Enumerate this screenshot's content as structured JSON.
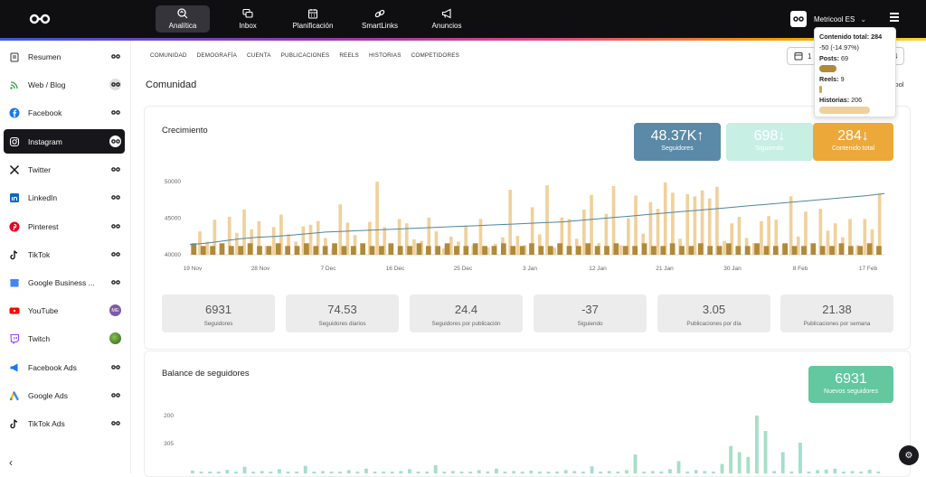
{
  "nav": {
    "items": [
      {
        "label": "Analítica",
        "icon": "analytics-icon"
      },
      {
        "label": "Inbox",
        "icon": "inbox-icon"
      },
      {
        "label": "Planificación",
        "icon": "calendar-icon"
      },
      {
        "label": "SmartLinks",
        "icon": "link-icon"
      },
      {
        "label": "Anuncios",
        "icon": "megaphone-icon"
      }
    ],
    "brand": "Metricool ES"
  },
  "sidebar": {
    "items": [
      {
        "label": "Resumen",
        "icon": "clipboard-icon"
      },
      {
        "label": "Web / Blog",
        "icon": "rss-icon"
      },
      {
        "label": "Facebook",
        "icon": "facebook-icon"
      },
      {
        "label": "Instagram",
        "icon": "instagram-icon"
      },
      {
        "label": "Twitter",
        "icon": "x-icon"
      },
      {
        "label": "LinkedIn",
        "icon": "linkedin-icon"
      },
      {
        "label": "Pinterest",
        "icon": "pinterest-icon"
      },
      {
        "label": "TikTok",
        "icon": "tiktok-icon"
      },
      {
        "label": "Google Business ...",
        "icon": "google-business-icon"
      },
      {
        "label": "YouTube",
        "icon": "youtube-icon",
        "badge": "ME"
      },
      {
        "label": "Twitch",
        "icon": "twitch-icon"
      },
      {
        "label": "Facebook Ads",
        "icon": "facebook-ads-icon"
      },
      {
        "label": "Google Ads",
        "icon": "google-ads-icon"
      },
      {
        "label": "TikTok Ads",
        "icon": "tiktok-ads-icon"
      }
    ]
  },
  "subnav": [
    "COMUNIDAD",
    "DEMOGRAFÍA",
    "CUENTA",
    "PUBLICACIONES",
    "REELS",
    "HISTORIAS",
    "COMPETIDORES"
  ],
  "date_range": {
    "start": "1",
    "end": "4"
  },
  "page_title": "Comunidad",
  "metricool_tag": "icool",
  "growth": {
    "title": "Crecimiento",
    "kpis": [
      {
        "value": "48.37K",
        "arrow": "↑",
        "label": "Seguidores",
        "color": "#5a8aa7"
      },
      {
        "value": "698",
        "arrow": "↓",
        "label": "Siguiendo",
        "color": "#c7efe3"
      },
      {
        "value": "284",
        "arrow": "↓",
        "label": "Contenido total",
        "color": "#eda83a"
      }
    ],
    "stats": [
      {
        "value": "6931",
        "label": "Seguidores"
      },
      {
        "value": "74.53",
        "label": "Seguidores diarios"
      },
      {
        "value": "24.4",
        "label": "Seguidores por publicación"
      },
      {
        "value": "-37",
        "label": "Siguiendo"
      },
      {
        "value": "3.05",
        "label": "Publicaciones por día"
      },
      {
        "value": "21.38",
        "label": "Publicaciones por semana"
      }
    ]
  },
  "balance": {
    "title": "Balance de seguidores",
    "kpi": {
      "value": "6931",
      "label": "Nuevos seguidores",
      "color": "#63c79f"
    }
  },
  "tooltip": {
    "title": "Contenido total:",
    "total": "284",
    "change": "-50 (-14.97%)",
    "posts_label": "Posts:",
    "posts": "69",
    "reels_label": "Reels:",
    "reels": "9",
    "stories_label": "Historias:",
    "stories": "206"
  },
  "chart_data": [
    {
      "type": "bar",
      "title": "Crecimiento",
      "ylim": [
        40000,
        52000
      ],
      "yticks": [
        "40000",
        "45000",
        "50000"
      ],
      "ytick_values": [
        40000,
        45000,
        50000
      ],
      "xticks": [
        "19 Nov",
        "28 Nov",
        "7 Dec",
        "16 Dec",
        "25 Dec",
        "3 Jan",
        "12 Jan",
        "21 Jan",
        "30 Jan",
        "8 Feb",
        "17 Feb"
      ],
      "series": [
        {
          "name": "Historias",
          "color": "#f0d19c",
          "values": [
            41500,
            43200,
            41800,
            44800,
            40600,
            45200,
            43000,
            46200,
            43500,
            44600,
            41200,
            43800,
            45500,
            42800,
            41800,
            43900,
            44100,
            44600,
            42300,
            40800,
            46900,
            44400,
            42700,
            41500,
            44500,
            50000,
            43800,
            41500,
            44900,
            44300,
            42100,
            41900,
            45100,
            43200,
            40900,
            42500,
            41800,
            44000,
            41300,
            44900,
            41000,
            41500,
            42400,
            48900,
            42600,
            41300,
            46500,
            42800,
            49500,
            41000,
            45100,
            44900,
            42200,
            46200,
            48200,
            41600,
            45600,
            49400,
            41300,
            45000,
            48100,
            42900,
            47200,
            46300,
            49900,
            48500,
            42200,
            48300,
            48000,
            48800,
            47700,
            49300,
            41900,
            44300,
            45200,
            42300,
            41600,
            44600,
            45300,
            44800,
            41500,
            48000,
            42500,
            45900,
            41300,
            46300,
            43300,
            44300,
            42400,
            44900,
            41300,
            44900,
            43500,
            48400
          ]
        },
        {
          "name": "Posts",
          "color": "#b08a3a",
          "values": [
            41200,
            41200,
            41200,
            41200,
            41200,
            41200,
            41200,
            41200,
            41200,
            41200,
            41200,
            41200,
            41200,
            41200,
            41200,
            41200,
            41200,
            41200,
            41200,
            41200,
            41200,
            41200,
            41200,
            41200,
            41200,
            41200,
            41200,
            41200,
            41200,
            41200,
            41200,
            41200,
            41200,
            41200,
            41200,
            41200,
            41200,
            41200,
            41200,
            41200,
            41200,
            41200,
            41200,
            41200,
            41200,
            41200,
            41200,
            41200,
            41200,
            41200,
            41200,
            41200,
            41200,
            41200,
            41200,
            41200,
            41200,
            41200,
            41200,
            41200,
            41200,
            41200,
            41200,
            41200,
            41200,
            41200,
            41200,
            41200,
            41200,
            41200,
            41200,
            41200,
            41200,
            41200
          ]
        },
        {
          "name": "Seguidores",
          "type": "line",
          "color": "#4e86a1",
          "values": [
            41400,
            41600,
            41900,
            42200,
            42400,
            42500,
            42700,
            42900,
            43100,
            43200,
            43300,
            43400,
            43500,
            43600,
            43700,
            43800,
            43900,
            44000,
            44100,
            44200,
            44300,
            44400,
            44500,
            44700,
            44900,
            45100,
            45300,
            45500,
            45700,
            45900,
            46100,
            46300,
            46500,
            46700,
            46900,
            47100,
            47300,
            47500,
            47700,
            47900,
            48100,
            48370
          ]
        }
      ]
    },
    {
      "type": "bar",
      "title": "Balance de seguidores",
      "yticks": [
        "200",
        "305"
      ],
      "ytick_values": [
        200,
        305
      ],
      "ylim": [
        60,
        305
      ],
      "series": [
        {
          "name": "Nuevos seguidores",
          "color": "#a6dfc8",
          "values": [
            72,
            60,
            68,
            60,
            75,
            62,
            88,
            64,
            70,
            62,
            78,
            66,
            60,
            92,
            64,
            70,
            60,
            66,
            74,
            60,
            80,
            62,
            68,
            64,
            70,
            78,
            62,
            60,
            95,
            64,
            70,
            66,
            60,
            74,
            68,
            80,
            62,
            70,
            66,
            72,
            64,
            60,
            68,
            74,
            70,
            66,
            90,
            62,
            70,
            66,
            74,
            140,
            62,
            70,
            68,
            78,
            112,
            66,
            74,
            70,
            62,
            100,
            176,
            150,
            130,
            305,
            240,
            70,
            150,
            68,
            190,
            62,
            74,
            76,
            80,
            66,
            70,
            62,
            76,
            68
          ]
        }
      ]
    }
  ]
}
